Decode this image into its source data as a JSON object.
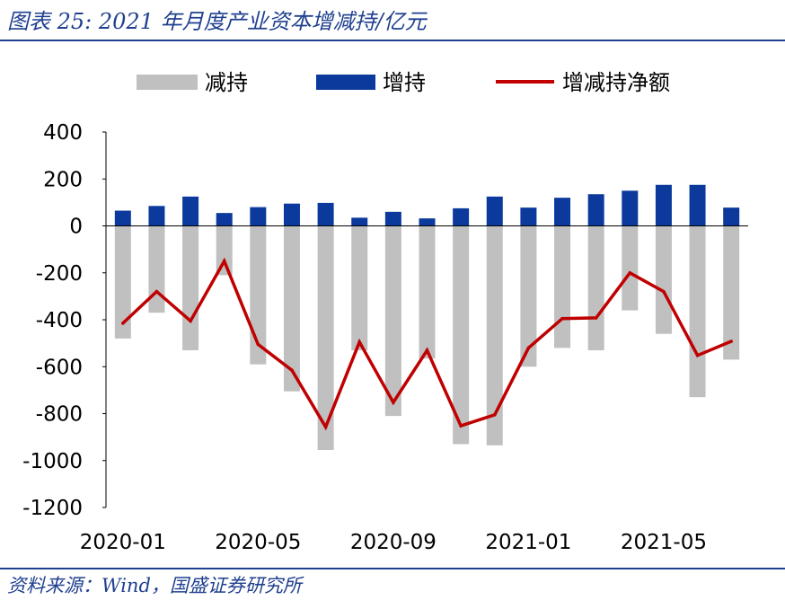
{
  "header": {
    "title": "图表 25:  2021 年月度产业资本增减持/亿元"
  },
  "footer": {
    "source": "资料来源：Wind，国盛证券研究所"
  },
  "colors": {
    "decrease": "#c0c0c0",
    "increase": "#0b3a9c",
    "net": "#c00000",
    "accent": "#1f3f8f"
  },
  "chart_data": {
    "type": "bar",
    "title": "",
    "xlabel": "",
    "ylabel": "",
    "ylim": [
      -1200,
      400
    ],
    "yticks": [
      "400",
      "200",
      "0",
      "-200",
      "-400",
      "-600",
      "-800",
      "-1000",
      "-1200"
    ],
    "x_tick_labels": [
      "2020-01",
      "2020-05",
      "2020-09",
      "2021-01",
      "2021-05"
    ],
    "categories": [
      "2020-01",
      "2020-02",
      "2020-03",
      "2020-04",
      "2020-05",
      "2020-06",
      "2020-07",
      "2020-08",
      "2020-09",
      "2020-10",
      "2020-11",
      "2020-12",
      "2021-01",
      "2021-02",
      "2021-03",
      "2021-04",
      "2021-05",
      "2021-06",
      "2021-07"
    ],
    "legend_position": "top",
    "grid": false,
    "series": [
      {
        "name": "减持",
        "type": "bar",
        "color": "#c0c0c0",
        "values": [
          -480,
          -370,
          -530,
          -210,
          -590,
          -705,
          -955,
          -530,
          -810,
          -565,
          -930,
          -935,
          -600,
          -520,
          -530,
          -360,
          -460,
          -730,
          -570
        ]
      },
      {
        "name": "增持",
        "type": "bar",
        "color": "#0b3a9c",
        "values": [
          65,
          85,
          125,
          55,
          80,
          95,
          98,
          35,
          60,
          32,
          75,
          125,
          78,
          120,
          135,
          150,
          175,
          175,
          78
        ]
      },
      {
        "name": "增减持净额",
        "type": "line",
        "color": "#c00000",
        "values": [
          -415,
          -280,
          -405,
          -150,
          -505,
          -615,
          -857,
          -495,
          -752,
          -530,
          -852,
          -805,
          -520,
          -395,
          -392,
          -200,
          -280,
          -552,
          -492
        ]
      }
    ]
  }
}
